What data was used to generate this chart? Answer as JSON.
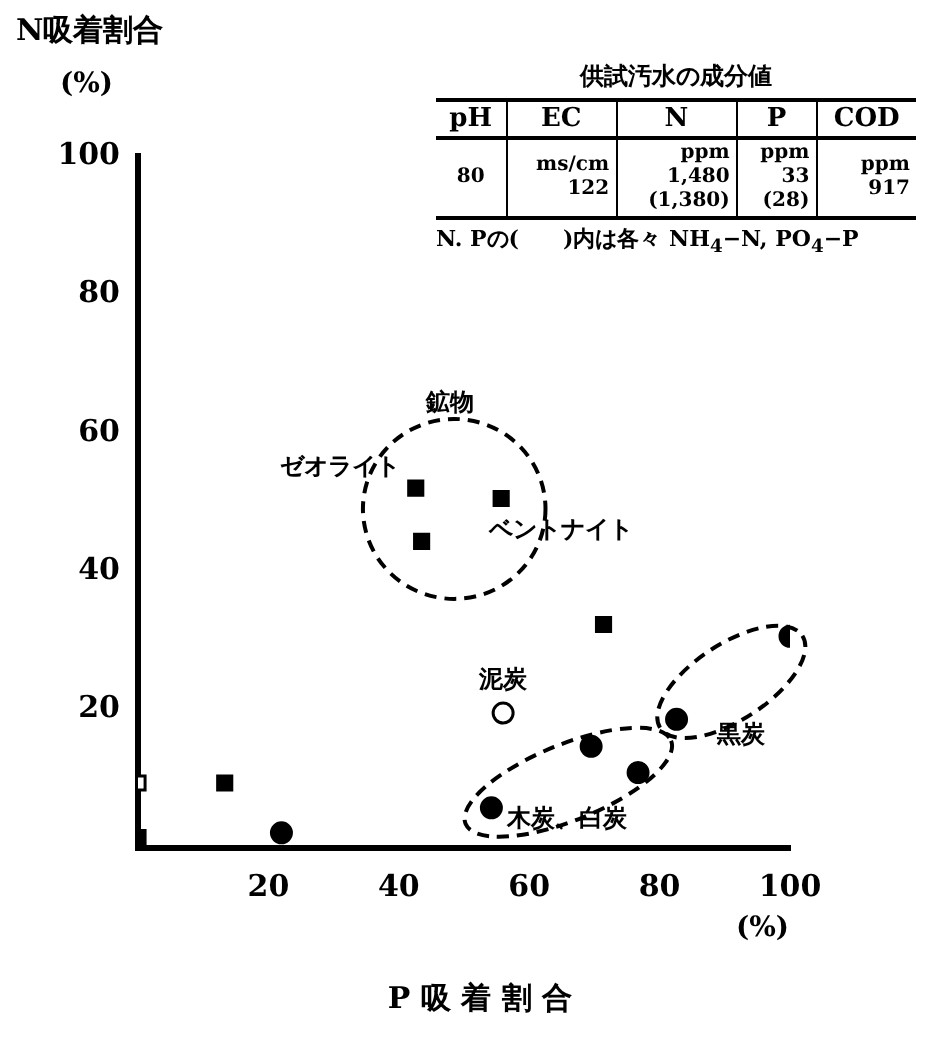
{
  "chart_data": {
    "type": "scatter",
    "xlabel": "P 吸 着 割 合",
    "ylabel": "N吸着割合",
    "xlim": [
      0,
      100
    ],
    "ylim": [
      0,
      100
    ],
    "xticks": [
      20,
      40,
      60,
      80,
      100
    ],
    "yticks": [
      20,
      40,
      60,
      80,
      100
    ],
    "grid": false,
    "legend": false,
    "series": [
      {
        "type": "scatter",
        "marker": "square",
        "color": "#000000",
        "x": [
          0,
          13.3,
          42.6,
          43.5,
          55.7,
          71.4
        ],
        "values": [
          1.5,
          9.4,
          52,
          44.3,
          50.5,
          32.3
        ]
      },
      {
        "type": "scatter",
        "marker": "square",
        "color": "#ffffff",
        "x": [
          0
        ],
        "values": [
          9.4
        ]
      },
      {
        "type": "scatter",
        "marker": "circle",
        "color": "#000000",
        "x": [
          22,
          54.2,
          69.5,
          76.7,
          82.6,
          100
        ],
        "values": [
          2.2,
          5.8,
          14.7,
          10.9,
          18.6,
          30.6
        ]
      },
      {
        "type": "scatter",
        "marker": "circle",
        "color": "#ffffff",
        "x": [
          56
        ],
        "values": [
          19.5
        ]
      }
    ],
    "annotations": [
      "供試汚水の成分値",
      "pH",
      "EC",
      "N",
      "P",
      "COD",
      "80",
      "ms/cm\n122",
      "ppm\n1,480\n(1,380)",
      "ppm\n33\n(28)",
      "ppm\n917",
      "N. Pの(　　)内は各々 NH$_{4}$−N, PO$_{4}$−P",
      "(%)",
      "(%)",
      "鉱物",
      {
        "text": "ゼオライト",
        "x": 42.6,
        "y": 52
      },
      {
        "text": "ベントナイト",
        "x": 55.7,
        "y": 50.5
      },
      {
        "text": "泥炭",
        "x": 56,
        "y": 19.5
      },
      {
        "text": "黒炭",
        "x": 82.6,
        "y": 18.6
      },
      {
        "text": "木炭、白炭",
        "x": 54.2,
        "y": 5.8
      }
    ]
  }
}
